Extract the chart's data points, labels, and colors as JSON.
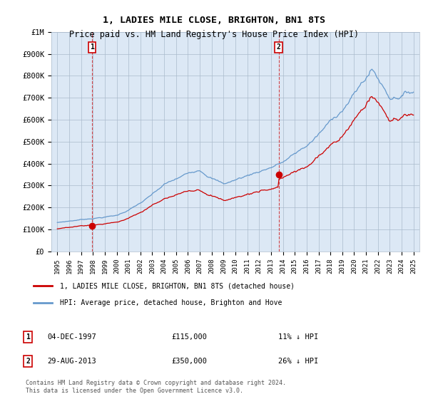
{
  "title": "1, LADIES MILE CLOSE, BRIGHTON, BN1 8TS",
  "subtitle": "Price paid vs. HM Land Registry's House Price Index (HPI)",
  "legend_label_red": "1, LADIES MILE CLOSE, BRIGHTON, BN1 8TS (detached house)",
  "legend_label_blue": "HPI: Average price, detached house, Brighton and Hove",
  "footnote": "Contains HM Land Registry data © Crown copyright and database right 2024.\nThis data is licensed under the Open Government Licence v3.0.",
  "sales": [
    {
      "label": "1",
      "date": "04-DEC-1997",
      "price": 115000,
      "pct": "11%",
      "direction": "↓",
      "year": 1997.92
    },
    {
      "label": "2",
      "date": "29-AUG-2013",
      "price": 350000,
      "pct": "26%",
      "direction": "↓",
      "year": 2013.65
    }
  ],
  "sale_prices": [
    115000,
    350000
  ],
  "ylim": [
    0,
    1000000
  ],
  "xlim": [
    1994.5,
    2025.5
  ],
  "yticks": [
    0,
    100000,
    200000,
    300000,
    400000,
    500000,
    600000,
    700000,
    800000,
    900000,
    1000000
  ],
  "ytick_labels": [
    "£0",
    "£100K",
    "£200K",
    "£300K",
    "£400K",
    "£500K",
    "£600K",
    "£700K",
    "£800K",
    "£900K",
    "£1M"
  ],
  "xticks": [
    1995,
    1996,
    1997,
    1998,
    1999,
    2000,
    2001,
    2002,
    2003,
    2004,
    2005,
    2006,
    2007,
    2008,
    2009,
    2010,
    2011,
    2012,
    2013,
    2014,
    2015,
    2016,
    2017,
    2018,
    2019,
    2020,
    2021,
    2022,
    2023,
    2024,
    2025
  ],
  "hpi_color": "#6699cc",
  "price_color": "#cc0000",
  "background_color": "#dce8f5",
  "plot_bg_color": "#dce8f5",
  "grid_color": "#aabbcc",
  "sale_marker_color": "#cc0000",
  "sale_box_color": "#cc0000",
  "label_box_color": "#cc0000"
}
